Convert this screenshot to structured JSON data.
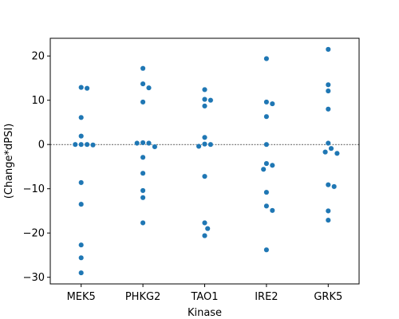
{
  "chart_data": {
    "type": "scatter",
    "title": "",
    "xlabel": "Kinase",
    "ylabel": "(Change*dPSI)",
    "categories": [
      "MEK5",
      "PHKG2",
      "TAO1",
      "IRE2",
      "GRK5"
    ],
    "ylim": [
      -31.5,
      24
    ],
    "yticks": [
      20,
      10,
      0,
      -10,
      -20,
      -30
    ],
    "reference_line": {
      "y": 0,
      "style": "dashed"
    },
    "marker_color": "#1f77b4",
    "grid": false,
    "series": [
      {
        "category": "MEK5",
        "values": [
          12.9,
          12.7,
          6.1,
          1.9,
          0,
          0,
          0,
          -0.1,
          -8.6,
          -13.5,
          -22.7,
          -25.6,
          -29.0
        ]
      },
      {
        "category": "PHKG2",
        "values": [
          17.2,
          13.7,
          12.8,
          9.6,
          0.4,
          0.3,
          0.3,
          -0.5,
          -2.9,
          -6.5,
          -10.4,
          -12.0,
          -17.7
        ]
      },
      {
        "category": "TAO1",
        "values": [
          12.4,
          10.2,
          10.0,
          8.7,
          1.6,
          0.1,
          0,
          -0.4,
          -7.2,
          -17.7,
          -19.0,
          -20.6
        ]
      },
      {
        "category": "IRE2",
        "values": [
          19.4,
          9.6,
          9.2,
          6.3,
          0,
          -4.3,
          -4.7,
          -5.6,
          -10.8,
          -13.9,
          -14.9,
          -23.8
        ]
      },
      {
        "category": "GRK5",
        "values": [
          21.5,
          13.5,
          12.1,
          8.0,
          0.3,
          -0.9,
          -1.7,
          -2.0,
          -9.1,
          -9.5,
          -15.0,
          -17.1
        ]
      }
    ]
  }
}
